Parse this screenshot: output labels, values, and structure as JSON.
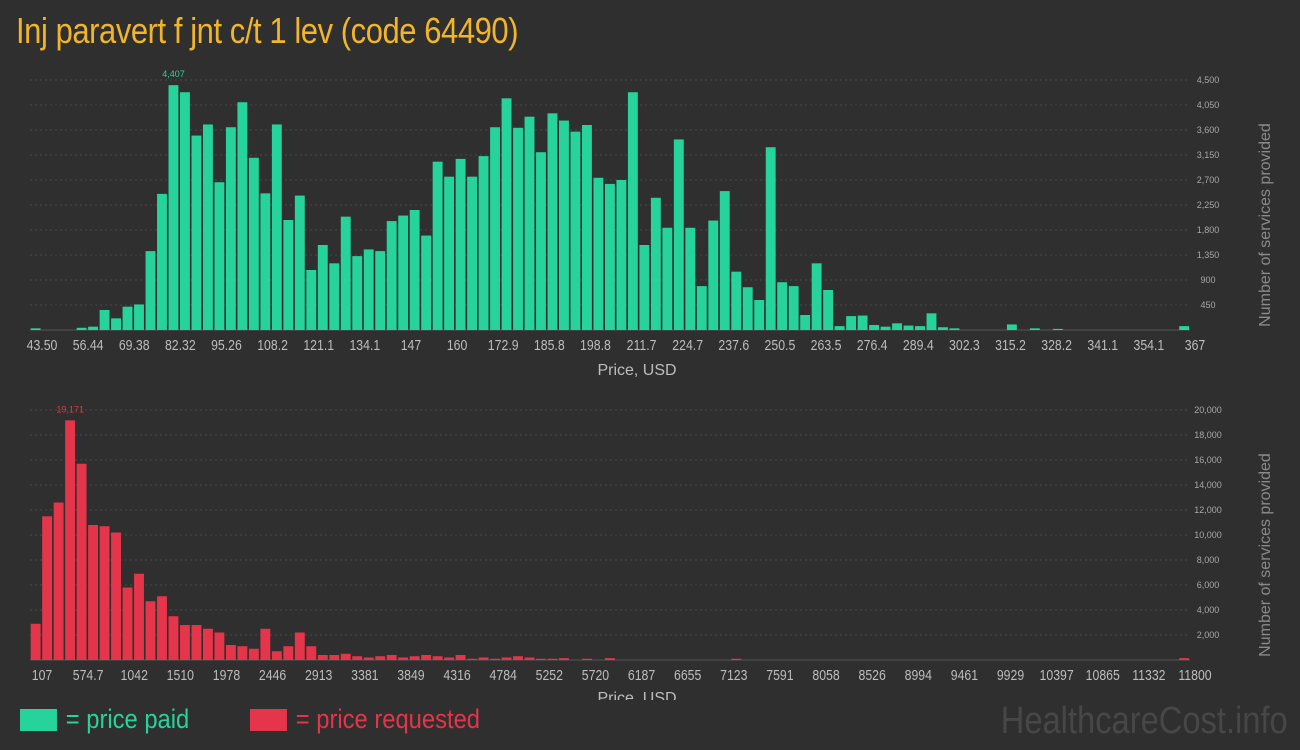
{
  "page": {
    "title": "Inj paravert f jnt c/t 1 lev (code 64490)",
    "watermark": "HealthcareCost.info",
    "colors": {
      "background": "#2f2f2f",
      "paid": "#26d39b",
      "requested": "#e5354a",
      "title": "#f2b52a"
    }
  },
  "legend": {
    "paid_label": "= price paid",
    "requested_label": "= price requested"
  },
  "chart_data": [
    {
      "type": "bar",
      "series_key": "paid",
      "color": "#26d39b",
      "xlabel": "Price, USD",
      "ylabel": "Number of services provided",
      "ylim": [
        0,
        4500
      ],
      "yticks": [
        450,
        900,
        1350,
        1800,
        2250,
        2700,
        3150,
        3600,
        4050,
        4500
      ],
      "ytick_labels": [
        "450",
        "900",
        "1,350",
        "1,800",
        "2,250",
        "2,700",
        "3,150",
        "3,600",
        "4,050",
        "4,500"
      ],
      "xtick_labels": [
        "43.50",
        "56.44",
        "69.38",
        "82.32",
        "95.26",
        "108.2",
        "121.1",
        "134.1",
        "147",
        "160",
        "172.9",
        "185.8",
        "198.8",
        "211.7",
        "224.7",
        "237.6",
        "250.5",
        "263.5",
        "276.4",
        "289.4",
        "302.3",
        "315.2",
        "328.2",
        "341.1",
        "354.1",
        "367"
      ],
      "peak_label": "4,407",
      "peak_index": 12,
      "values": [
        30,
        0,
        0,
        0,
        40,
        60,
        360,
        210,
        420,
        460,
        1420,
        2450,
        4407,
        4280,
        3500,
        3700,
        2660,
        3650,
        4100,
        3100,
        2460,
        3700,
        1980,
        2420,
        1080,
        1530,
        1200,
        2040,
        1330,
        1450,
        1420,
        1960,
        2060,
        2160,
        1700,
        3030,
        2760,
        3080,
        2760,
        3130,
        3650,
        4170,
        3640,
        3840,
        3200,
        3900,
        3770,
        3570,
        3690,
        2740,
        2630,
        2700,
        4280,
        1530,
        2380,
        1840,
        3430,
        1840,
        790,
        1970,
        2500,
        1050,
        770,
        540,
        3290,
        860,
        790,
        270,
        1200,
        720,
        70,
        250,
        260,
        90,
        60,
        120,
        80,
        70,
        300,
        50,
        30,
        0,
        0,
        0,
        0,
        100,
        0,
        30,
        0,
        20,
        0,
        0,
        0,
        0,
        0,
        0,
        0,
        0,
        0,
        0,
        70
      ]
    },
    {
      "type": "bar",
      "series_key": "requested",
      "color": "#e5354a",
      "xlabel": "Price, USD",
      "ylabel": "Number of services provided",
      "ylim": [
        0,
        20000
      ],
      "yticks": [
        2000,
        4000,
        6000,
        8000,
        10000,
        12000,
        14000,
        16000,
        18000,
        20000
      ],
      "ytick_labels": [
        "2,000",
        "4,000",
        "6,000",
        "8,000",
        "10,000",
        "12,000",
        "14,000",
        "16,000",
        "18,000",
        "20,000"
      ],
      "xtick_labels": [
        "107",
        "574.7",
        "1042",
        "1510",
        "1978",
        "2446",
        "2913",
        "3381",
        "3849",
        "4316",
        "4784",
        "5252",
        "5720",
        "6187",
        "6655",
        "7123",
        "7591",
        "8058",
        "8526",
        "8994",
        "9461",
        "9929",
        "10397",
        "10865",
        "11332",
        "11800"
      ],
      "peak_label": "19,171",
      "peak_index": 3,
      "values": [
        2900,
        11500,
        12600,
        19171,
        15700,
        10800,
        10700,
        10200,
        5800,
        6900,
        4700,
        5100,
        3500,
        2800,
        2800,
        2500,
        2200,
        1200,
        1100,
        900,
        2500,
        700,
        1100,
        2200,
        1100,
        400,
        400,
        500,
        300,
        200,
        300,
        400,
        200,
        300,
        400,
        300,
        200,
        400,
        100,
        200,
        100,
        200,
        300,
        200,
        100,
        100,
        150,
        0,
        100,
        0,
        150,
        0,
        0,
        0,
        0,
        0,
        0,
        0,
        0,
        0,
        0,
        100,
        0,
        0,
        0,
        0,
        0,
        0,
        0,
        0,
        0,
        0,
        0,
        0,
        0,
        0,
        0,
        0,
        0,
        0,
        0,
        0,
        0,
        0,
        0,
        0,
        0,
        0,
        0,
        0,
        0,
        0,
        0,
        0,
        0,
        0,
        0,
        0,
        0,
        0,
        150
      ]
    }
  ]
}
